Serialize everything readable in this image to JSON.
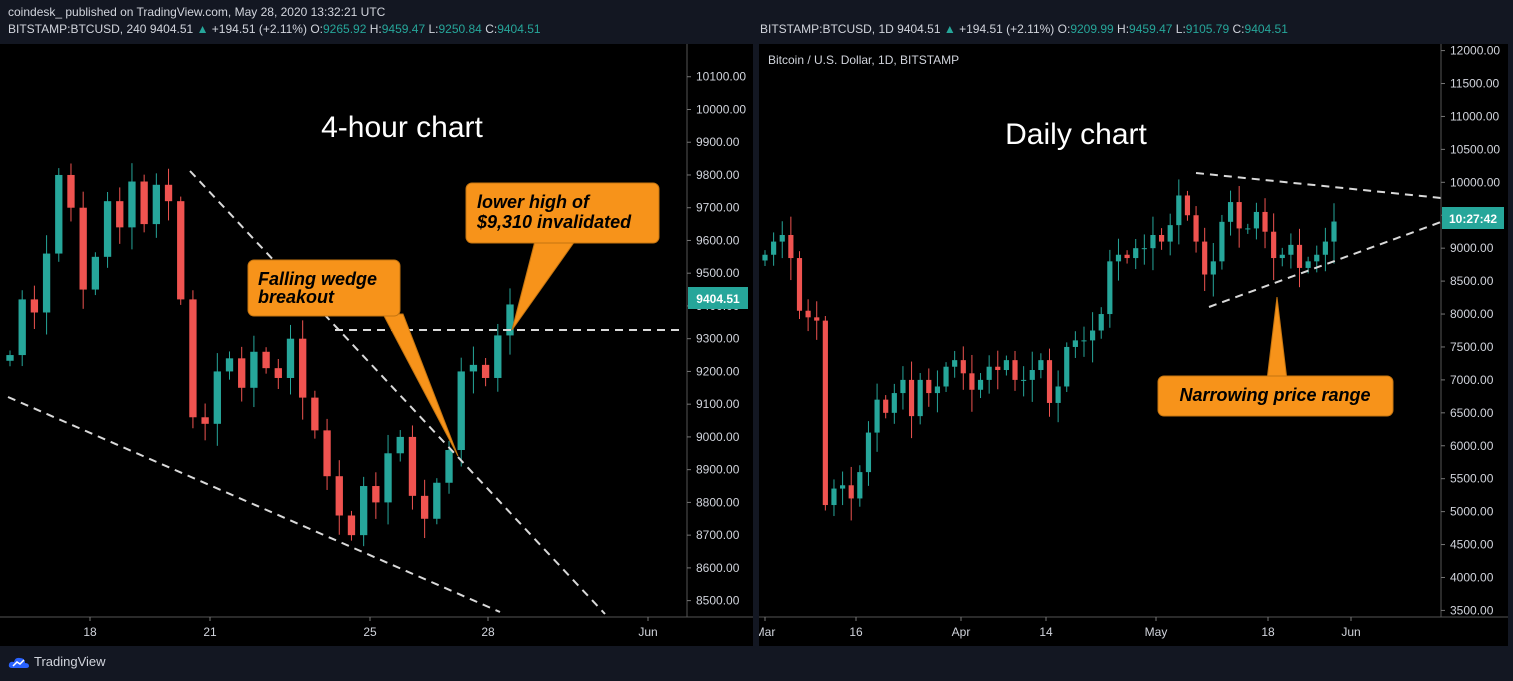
{
  "publisher": "coindesk_  published on TradingView.com, May 28, 2020 13:32:21 UTC",
  "brand": "TradingView",
  "left": {
    "symbol": "BITSTAMP:BTCUSD, 240",
    "last": "9404.51",
    "change": "+194.51 (+2.11%)",
    "o": "9265.92",
    "h": "9459.47",
    "l": "9250.84",
    "c": "9404.51",
    "title": "4-hour chart",
    "price_tag": "9404.51",
    "callout1": [
      "Falling wedge",
      "breakout"
    ],
    "callout2": [
      "lower high of",
      "$9,310 invalidated"
    ]
  },
  "right": {
    "symbol": "BITSTAMP:BTCUSD, 1D",
    "last": "9404.51",
    "change": "+194.51 (+2.11%)",
    "o": "9209.99",
    "h": "9459.47",
    "l": "9105.79",
    "c": "9404.51",
    "subtitle": "Bitcoin / U.S. Dollar, 1D, BITSTAMP",
    "title": "Daily chart",
    "price_tag": "10:27:42",
    "callout": "Narrowing price range"
  },
  "colors": {
    "up": "#26a69a",
    "down": "#ef5350",
    "accent": "#f7931a",
    "tag": "#26a69a"
  },
  "chart_data": [
    {
      "type": "candlestick",
      "title": "4-hour chart",
      "x_ticks": [
        "18",
        "21",
        "25",
        "28",
        "Jun"
      ],
      "y_ticks": [
        "8500.00",
        "8600.00",
        "8700.00",
        "8800.00",
        "8900.00",
        "9000.00",
        "9100.00",
        "9200.00",
        "9300.00",
        "9400.00",
        "9500.00",
        "9600.00",
        "9700.00",
        "9800.00",
        "9900.00",
        "10000.00",
        "10100.00"
      ],
      "ylim": [
        8450,
        10200
      ],
      "resistance_level": 9310,
      "close_path": [
        9250,
        9420,
        9380,
        9560,
        9800,
        9700,
        9450,
        9550,
        9720,
        9640,
        9780,
        9650,
        9770,
        9720,
        9420,
        9060,
        9040,
        9200,
        9240,
        9150,
        9260,
        9210,
        9180,
        9300,
        9120,
        9020,
        8880,
        8760,
        8700,
        8850,
        8800,
        8950,
        9000,
        8820,
        8750,
        8860,
        8960,
        9200,
        9220,
        9180,
        9310,
        9404.51
      ]
    },
    {
      "type": "candlestick",
      "title": "Daily chart",
      "x_ticks": [
        "Mar",
        "16",
        "Apr",
        "14",
        "May",
        "18",
        "Jun"
      ],
      "y_ticks": [
        "3500.00",
        "4000.00",
        "4500.00",
        "5000.00",
        "5500.00",
        "6000.00",
        "6500.00",
        "7000.00",
        "7500.00",
        "8000.00",
        "8500.00",
        "9000.00",
        "9500.00",
        "10000.00",
        "10500.00",
        "11000.00",
        "11500.00",
        "12000.00"
      ],
      "ylim": [
        3400,
        12100
      ],
      "close_path": [
        8900,
        9100,
        9200,
        8850,
        8050,
        7950,
        7900,
        5100,
        5350,
        5400,
        5200,
        5600,
        6200,
        6700,
        6500,
        6800,
        7000,
        6450,
        7000,
        6800,
        6900,
        7200,
        7300,
        7100,
        6850,
        7000,
        7200,
        7150,
        7300,
        7000,
        7000,
        7150,
        7300,
        6650,
        6900,
        7500,
        7600,
        7600,
        7750,
        8000,
        8800,
        8900,
        8850,
        9000,
        9000,
        9200,
        9100,
        9350,
        9800,
        9500,
        9100,
        8600,
        8800,
        9400,
        9700,
        9300,
        9300,
        9550,
        9250,
        8850,
        8900,
        9050,
        8700,
        8800,
        8900,
        9100,
        9404.51
      ]
    }
  ]
}
